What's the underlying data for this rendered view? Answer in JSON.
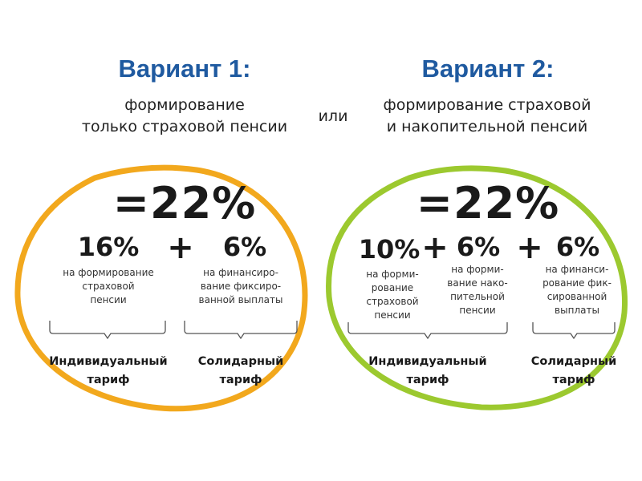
{
  "option1": {
    "title": "Вариант 1:",
    "subtitle_line1": "формирование",
    "subtitle_line2": "только страховой пенсии",
    "total": "=22%",
    "items": [
      {
        "value": "16%",
        "desc_line1": "на формирование",
        "desc_line2": "страховой",
        "desc_line3": "пенсии"
      },
      {
        "value": "6%",
        "desc_line1": "на финансиро-",
        "desc_line2": "вание фиксиро-",
        "desc_line3": "ванной выплаты"
      }
    ],
    "plus": "+",
    "tariff_individual_line1": "Индивидуальный",
    "tariff_individual_line2": "тариф",
    "tariff_solidary_line1": "Солидарный",
    "tariff_solidary_line2": "тариф",
    "ring_color": "#f2a81d"
  },
  "or_label": "или",
  "option2": {
    "title": "Вариант 2:",
    "subtitle_line1": "формирование страховой",
    "subtitle_line2": "и накопительной пенсий",
    "total": "=22%",
    "items": [
      {
        "value": "10%",
        "desc_line1": "на форми-",
        "desc_line2": "рование",
        "desc_line3": "страховой",
        "desc_line4": "пенсии"
      },
      {
        "value": "6%",
        "desc_line1": "на форми-",
        "desc_line2": "вание нако-",
        "desc_line3": "пительной",
        "desc_line4": "пенсии"
      },
      {
        "value": "6%",
        "desc_line1": "на финанси-",
        "desc_line2": "рование фик-",
        "desc_line3": "сированной",
        "desc_line4": "выплаты"
      }
    ],
    "plus": "+",
    "tariff_individual_line1": "Индивидуальный",
    "tariff_individual_line2": "тариф",
    "tariff_solidary_line1": "Солидарный",
    "tariff_solidary_line2": "тариф",
    "ring_color": "#9cc92f"
  }
}
